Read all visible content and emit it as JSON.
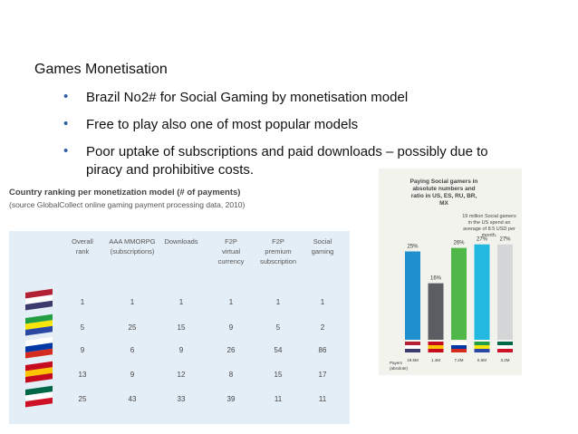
{
  "heading": "Games Monetisation",
  "bullets": [
    "Brazil No2# for Social Gaming by monetisation model",
    "Free to play also one of most popular models",
    "Poor uptake of subscriptions and paid downloads – possibly due to piracy and prohibitive costs."
  ],
  "table": {
    "title": "Country ranking per monetization model (# of payments)",
    "source": "(source GlobalCollect online gaming payment processing data, 2010)",
    "headers": [
      "Overall rank",
      "AAA MMORPG (subscriptions)",
      "Downloads",
      "F2P virtual currency",
      "F2P premium subscription",
      "Social gaming"
    ],
    "rows": [
      [
        "1",
        "1",
        "1",
        "1",
        "1",
        "1"
      ],
      [
        "5",
        "25",
        "15",
        "9",
        "5",
        "2"
      ],
      [
        "9",
        "6",
        "9",
        "26",
        "54",
        "86"
      ],
      [
        "13",
        "9",
        "12",
        "8",
        "15",
        "17"
      ],
      [
        "25",
        "43",
        "33",
        "39",
        "11",
        "11"
      ]
    ]
  },
  "chart": {
    "type": "bar",
    "title": "Paying Social gamers in absolute numbers and ratio in US, ES, RU, BR, MX",
    "annotation": "19 million Social gamers in the US spend an average of 8.5 USD per month.",
    "axis_label": "Payers (absolute)",
    "values": [
      25,
      16,
      26,
      27,
      27
    ],
    "value_labels": [
      "25%",
      "16%",
      "26%",
      "27%",
      "27%"
    ],
    "payers": [
      "19.6M",
      "1.4M",
      "7.2M",
      "6.6M",
      "3.2M"
    ],
    "colors": [
      "#1f8fd0",
      "#5a5e63",
      "#4fb848",
      "#22b8e0",
      "#d4d6d8"
    ]
  }
}
